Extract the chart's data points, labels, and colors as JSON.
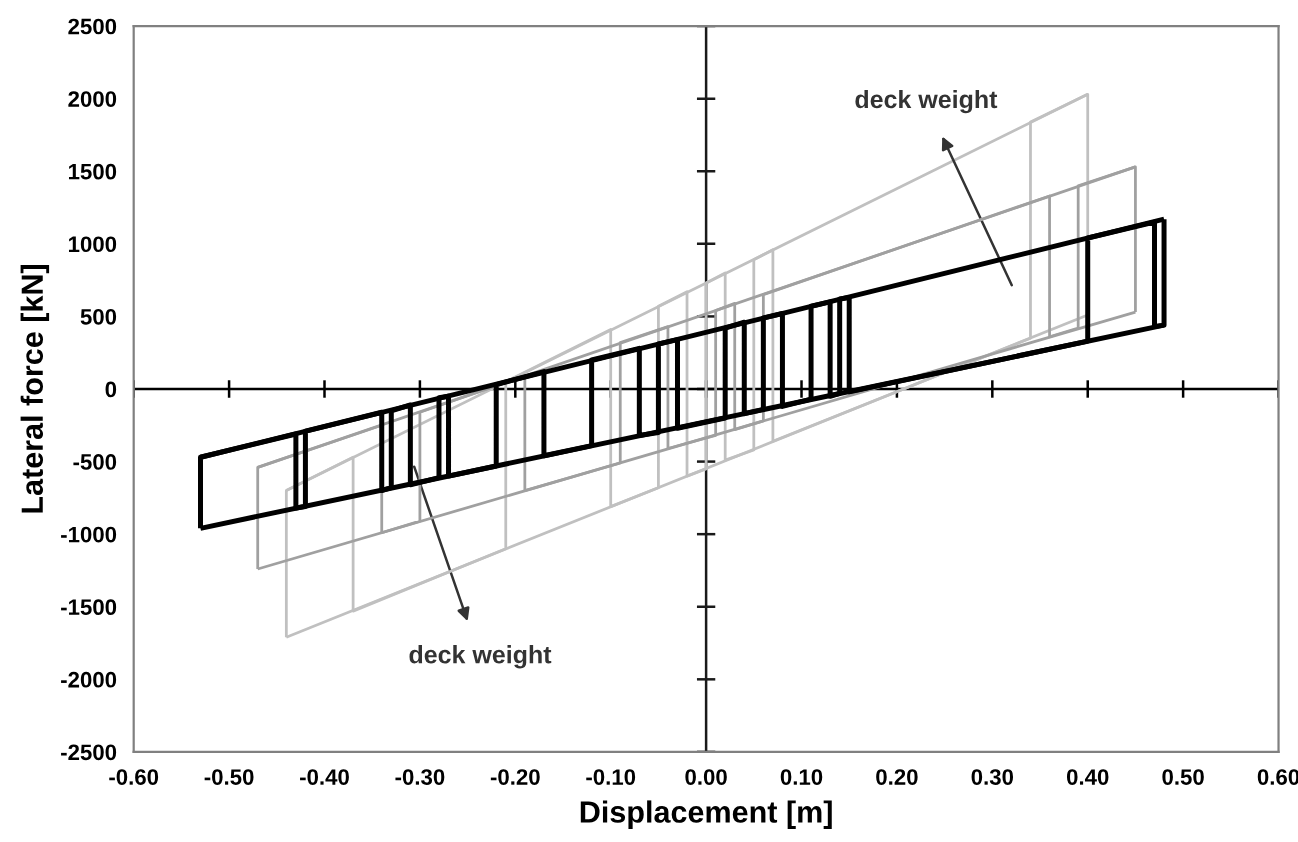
{
  "chart_data": {
    "type": "line",
    "xlabel": "Displacement [m]",
    "ylabel": "Lateral force [kN]",
    "xlim": [
      -0.6,
      0.6
    ],
    "xticks": [
      {
        "value": -0.6,
        "label": "-0.60"
      },
      {
        "value": -0.5,
        "label": "-0.50"
      },
      {
        "value": -0.4,
        "label": "-0.40"
      },
      {
        "value": -0.3,
        "label": "-0.30"
      },
      {
        "value": -0.2,
        "label": "-0.20"
      },
      {
        "value": -0.1,
        "label": "-0.10"
      },
      {
        "value": 0,
        "label": "0.00"
      },
      {
        "value": 0.1,
        "label": "0.10"
      },
      {
        "value": 0.2,
        "label": "0.20"
      },
      {
        "value": 0.3,
        "label": "0.30"
      },
      {
        "value": 0.4,
        "label": "0.40"
      },
      {
        "value": 0.5,
        "label": "0.50"
      },
      {
        "value": 0.6,
        "label": "0.60"
      }
    ],
    "ylim": [
      -2500,
      2500
    ],
    "yticks": [
      -2500,
      -2000,
      -1500,
      -1000,
      -500,
      0,
      500,
      1000,
      1500,
      2000,
      2500
    ],
    "grid": false,
    "marker": "none",
    "line_style": "solid",
    "ref_lines": [
      {
        "axis": "x",
        "value": 0,
        "color": "#1a1a1a"
      },
      {
        "axis": "y",
        "value": 0,
        "color": "#000000"
      }
    ],
    "series": [
      {
        "color": "#c0c0c0",
        "x": [
          -0.44,
          0.4
        ],
        "values": [
          -700,
          2030
        ]
      },
      {
        "color": "#c0c0c0",
        "x": [
          -0.44,
          0.4
        ],
        "values": [
          -1710,
          510
        ]
      },
      {
        "color": "#c0c0c0",
        "x": [
          -0.44,
          -0.44,
          -0.37,
          -0.37,
          -0.21,
          -0.21,
          -0.1,
          -0.1,
          -0.05,
          -0.05,
          -0.02,
          -0.02,
          0.0,
          0.0,
          0.02,
          0.02,
          0.05,
          0.05,
          0.07,
          0.07,
          0.34,
          0.34,
          0.4,
          0.4
        ],
        "values": [
          -1710,
          -700,
          -470,
          -1530,
          -1100,
          50,
          410,
          -810,
          -680,
          570,
          670,
          -600,
          -550,
          730,
          800,
          -490,
          -420,
          890,
          960,
          -360,
          350,
          1840,
          2030,
          510
        ]
      },
      {
        "color": "#a0a0a0",
        "x": [
          -0.47,
          0.45
        ],
        "values": [
          -540,
          1530
        ]
      },
      {
        "color": "#a0a0a0",
        "x": [
          -0.47,
          0.45
        ],
        "values": [
          -1240,
          530
        ]
      },
      {
        "color": "#a0a0a0",
        "x": [
          -0.47,
          -0.47,
          -0.34,
          -0.34,
          -0.3,
          -0.3,
          -0.19,
          -0.19,
          -0.09,
          -0.09,
          -0.04,
          -0.04,
          0.01,
          0.01,
          0.03,
          0.03,
          0.06,
          0.06,
          0.36,
          0.36,
          0.39,
          0.39,
          0.45,
          0.45
        ],
        "values": [
          -1240,
          -540,
          -250,
          -990,
          -910,
          -160,
          90,
          -700,
          -510,
          320,
          430,
          -410,
          -320,
          540,
          590,
          -280,
          -220,
          650,
          1330,
          360,
          420,
          1400,
          1530,
          530
        ]
      },
      {
        "color": "#000000",
        "x": [
          -0.53,
          0.48
        ],
        "values": [
          -470,
          1170
        ]
      },
      {
        "color": "#000000",
        "x": [
          -0.53,
          0.48
        ],
        "values": [
          -960,
          440
        ]
      },
      {
        "color": "#000000",
        "x": [
          -0.53,
          -0.53,
          -0.43,
          -0.43,
          -0.42,
          -0.42,
          -0.34,
          -0.34,
          -0.33,
          -0.33,
          -0.31,
          -0.31,
          -0.28,
          -0.28,
          -0.27,
          -0.27,
          -0.22,
          -0.22,
          -0.17,
          -0.17,
          -0.12,
          -0.12,
          -0.07,
          -0.07,
          -0.05,
          -0.05,
          -0.03,
          -0.03,
          0.02,
          0.02,
          0.04,
          0.04,
          0.06,
          0.06,
          0.08,
          0.08,
          0.11,
          0.11,
          0.13,
          0.13,
          0.14,
          0.14,
          0.15,
          0.15,
          0.4,
          0.4,
          0.47,
          0.47,
          0.48,
          0.48
        ],
        "values": [
          -960,
          -470,
          -310,
          -820,
          -810,
          -290,
          -160,
          -700,
          -680,
          -150,
          -110,
          -660,
          -610,
          -60,
          -50,
          -600,
          -530,
          30,
          120,
          -460,
          -390,
          200,
          280,
          -320,
          -300,
          310,
          340,
          -270,
          -200,
          420,
          460,
          -170,
          -140,
          490,
          520,
          -120,
          -70,
          570,
          600,
          -50,
          -30,
          620,
          630,
          -20,
          330,
          1040,
          1150,
          430,
          440,
          1170
        ]
      }
    ],
    "annotations": [
      "deck weight",
      "deck weight"
    ]
  }
}
